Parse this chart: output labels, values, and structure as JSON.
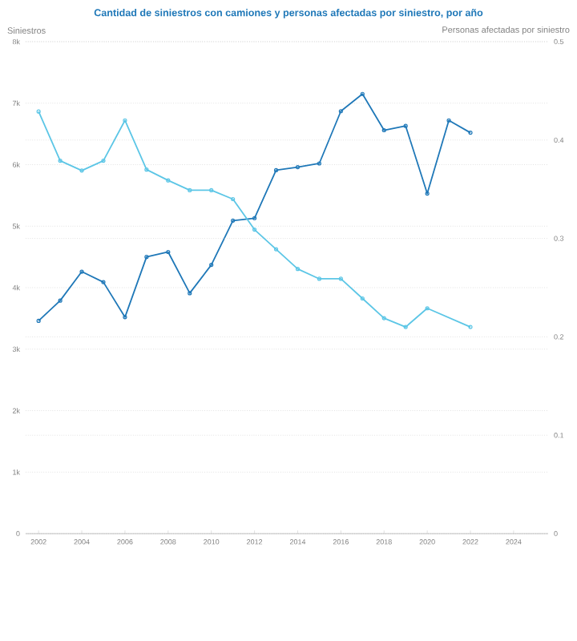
{
  "chart_data": {
    "type": "line",
    "title": "Cantidad de siniestros con camiones y personas afectadas por siniestro, por año",
    "ylabel": "Siniestros",
    "y2label": "Personas afectadas por siniestro",
    "x": [
      2002,
      2003,
      2004,
      2005,
      2006,
      2007,
      2008,
      2009,
      2010,
      2011,
      2012,
      2013,
      2014,
      2015,
      2016,
      2017,
      2018,
      2019,
      2020,
      2021,
      2022
    ],
    "series": [
      {
        "color": "#1f78b8",
        "values": [
          3460,
          3790,
          4260,
          4090,
          3520,
          4500,
          4580,
          3910,
          4370,
          5090,
          5130,
          5910,
          5960,
          6020,
          6870,
          7150,
          6560,
          6630,
          5530,
          6720,
          6520
        ]
      },
      {
        "color": "#5cc6e6",
        "axis": "y2",
        "x": [
          2002,
          2003,
          2004,
          2005,
          2006,
          2007,
          2008,
          2009,
          2010,
          2011,
          2012,
          2013,
          2014,
          2015,
          2016,
          2017,
          2018,
          2019,
          2020,
          2022
        ],
        "values": [
          0.429,
          0.379,
          0.369,
          0.379,
          0.42,
          0.37,
          0.359,
          0.349,
          0.349,
          0.34,
          0.309,
          0.289,
          0.269,
          0.259,
          0.259,
          0.239,
          0.219,
          0.21,
          0.229,
          0.21
        ]
      }
    ],
    "xlim": [
      2001.4,
      2025.6
    ],
    "xticks": [
      2002,
      2004,
      2006,
      2008,
      2010,
      2012,
      2014,
      2016,
      2018,
      2020,
      2022,
      2024
    ],
    "ylim": [
      0,
      8000
    ],
    "yticks": [
      0,
      {
        "value": 1000,
        "label": "1k"
      },
      {
        "value": 2000,
        "label": "2k"
      },
      {
        "value": 3000,
        "label": "3k"
      },
      {
        "value": 4000,
        "label": "4k"
      },
      {
        "value": 5000,
        "label": "5k"
      },
      {
        "value": 6000,
        "label": "6k"
      },
      {
        "value": 7000,
        "label": "7k"
      },
      {
        "value": 8000,
        "label": "8k"
      }
    ],
    "y2lim": [
      0,
      0.5
    ],
    "y2ticks": [
      0,
      0.1,
      0.2,
      0.3,
      0.4,
      0.5
    ],
    "grid": "y",
    "marker": "circle",
    "line_style": "solid"
  }
}
